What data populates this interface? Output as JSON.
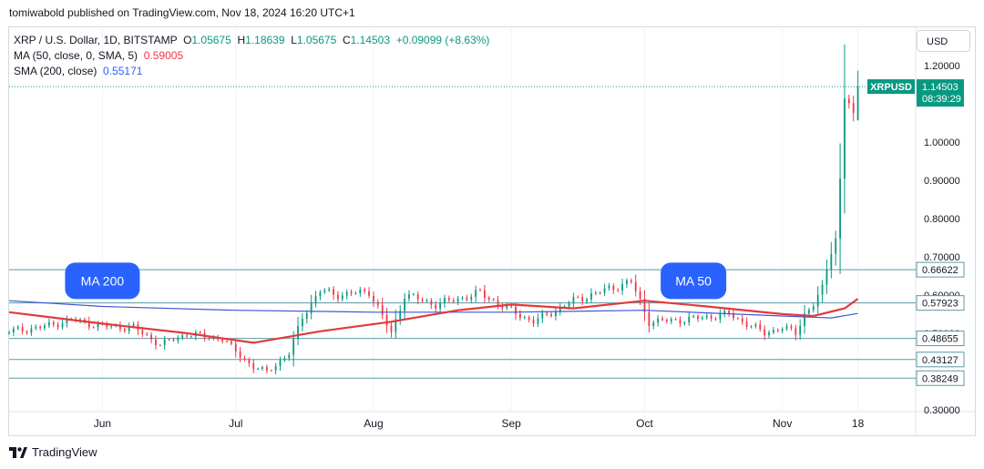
{
  "header": {
    "publisher_line": "tomiwabold published on TradingView.com, Nov 18, 2024 16:20 UTC+1"
  },
  "legend": {
    "symbol": "XRP / U.S. Dollar, 1D, BITSTAMP",
    "open_label": "O",
    "open": "1.05675",
    "high_label": "H",
    "high": "1.18639",
    "low_label": "L",
    "low": "1.05675",
    "close_label": "C",
    "close": "1.14503",
    "change": "+0.09099 (+8.63%)",
    "ma50_label": "MA (50, close, 0, SMA, 5)",
    "ma50_value": "0.59005",
    "sma200_label": "SMA (200, close)",
    "sma200_value": "0.55171"
  },
  "currency_button": "USD",
  "footer": {
    "brand": "TradingView",
    "logo_icon": "tradingview-logo-icon"
  },
  "colors": {
    "up": "#089981",
    "down": "#f23645",
    "ma50": "#e03a3e",
    "sma200": "#3d59d3",
    "level": "#5b9aa6",
    "label_blue": "#2962ff"
  },
  "chart_data": {
    "type": "candlestick",
    "symbol": "XRPUSD",
    "y_axis": {
      "range": [
        0.295,
        1.3
      ],
      "tick_labels": [
        "1.20000",
        "1.00000",
        "0.90000",
        "0.80000",
        "0.70000",
        "0.60000",
        "0.50000",
        "0.30000"
      ],
      "tick_values": [
        1.2,
        1.0,
        0.9,
        0.8,
        0.7,
        0.6,
        0.5,
        0.3
      ]
    },
    "x_axis": {
      "range": [
        "2024-05-11",
        "2024-12-01"
      ],
      "tick_labels": [
        {
          "label": "Jun",
          "date": "2024-06-01"
        },
        {
          "label": "Jul",
          "date": "2024-07-01"
        },
        {
          "label": "Aug",
          "date": "2024-08-01"
        },
        {
          "label": "Sep",
          "date": "2024-09-01"
        },
        {
          "label": "Oct",
          "date": "2024-10-01"
        },
        {
          "label": "Nov",
          "date": "2024-11-01"
        },
        {
          "label": "18",
          "date": "2024-11-18"
        }
      ]
    },
    "last_price": {
      "label": "XRPUSD",
      "value": "1.14503",
      "countdown": "08:39:29",
      "y": 1.14503
    },
    "levels": [
      {
        "label": "0.66622",
        "y": 0.66622
      },
      {
        "label": "0.57923",
        "y": 0.57923
      },
      {
        "label": "0.48655",
        "y": 0.48655
      },
      {
        "label": "0.43127",
        "y": 0.43127
      },
      {
        "label": "0.38249",
        "y": 0.38249
      }
    ],
    "annotations": [
      {
        "text": "MA 200",
        "date": "2024-06-01",
        "y": 0.637
      },
      {
        "text": "MA 50",
        "date": "2024-10-12",
        "y": 0.637
      }
    ],
    "close_anchors": [
      [
        "2024-05-11",
        0.505
      ],
      [
        "2024-05-18",
        0.515
      ],
      [
        "2024-05-25",
        0.535
      ],
      [
        "2024-06-01",
        0.518
      ],
      [
        "2024-06-08",
        0.515
      ],
      [
        "2024-06-14",
        0.47
      ],
      [
        "2024-06-20",
        0.498
      ],
      [
        "2024-06-28",
        0.485
      ],
      [
        "2024-07-05",
        0.41
      ],
      [
        "2024-07-08",
        0.4
      ],
      [
        "2024-07-13",
        0.445
      ],
      [
        "2024-07-16",
        0.545
      ],
      [
        "2024-07-20",
        0.61
      ],
      [
        "2024-07-25",
        0.6
      ],
      [
        "2024-07-31",
        0.61
      ],
      [
        "2024-08-05",
        0.5
      ],
      [
        "2024-08-08",
        0.6
      ],
      [
        "2024-08-15",
        0.575
      ],
      [
        "2024-08-25",
        0.605
      ],
      [
        "2024-08-31",
        0.565
      ],
      [
        "2024-09-06",
        0.53
      ],
      [
        "2024-09-15",
        0.585
      ],
      [
        "2024-09-28",
        0.635
      ],
      [
        "2024-10-02",
        0.53
      ],
      [
        "2024-10-10",
        0.535
      ],
      [
        "2024-10-20",
        0.55
      ],
      [
        "2024-10-28",
        0.5
      ],
      [
        "2024-11-01",
        0.515
      ],
      [
        "2024-11-04",
        0.5
      ],
      [
        "2024-11-06",
        0.55
      ],
      [
        "2024-11-08",
        0.575
      ],
      [
        "2024-11-10",
        0.615
      ],
      [
        "2024-11-12",
        0.72
      ],
      [
        "2024-11-13",
        0.75
      ],
      [
        "2024-11-14",
        0.9
      ],
      [
        "2024-11-15",
        1.12
      ],
      [
        "2024-11-16",
        1.1
      ],
      [
        "2024-11-17",
        1.05675
      ],
      [
        "2024-11-18",
        1.14503
      ]
    ],
    "ma50": [
      [
        "2024-05-11",
        0.555
      ],
      [
        "2024-06-01",
        0.525
      ],
      [
        "2024-06-20",
        0.5
      ],
      [
        "2024-07-05",
        0.475
      ],
      [
        "2024-07-20",
        0.505
      ],
      [
        "2024-08-05",
        0.53
      ],
      [
        "2024-08-20",
        0.56
      ],
      [
        "2024-09-01",
        0.575
      ],
      [
        "2024-09-15",
        0.565
      ],
      [
        "2024-10-01",
        0.585
      ],
      [
        "2024-10-15",
        0.57
      ],
      [
        "2024-11-01",
        0.55
      ],
      [
        "2024-11-08",
        0.545
      ],
      [
        "2024-11-15",
        0.565
      ],
      [
        "2024-11-18",
        0.59005
      ]
    ],
    "sma200": [
      [
        "2024-05-11",
        0.585
      ],
      [
        "2024-06-01",
        0.57
      ],
      [
        "2024-07-01",
        0.56
      ],
      [
        "2024-08-01",
        0.555
      ],
      [
        "2024-09-01",
        0.555
      ],
      [
        "2024-10-01",
        0.56
      ],
      [
        "2024-11-01",
        0.545
      ],
      [
        "2024-11-12",
        0.54
      ],
      [
        "2024-11-18",
        0.55171
      ]
    ]
  }
}
